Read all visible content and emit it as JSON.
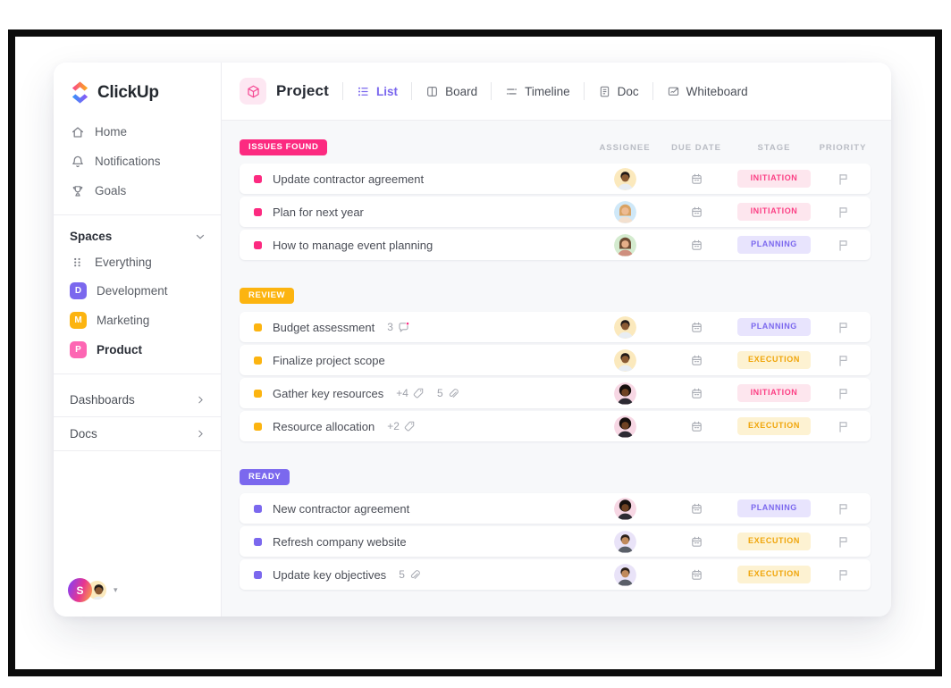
{
  "sidebar": {
    "logo_text": "ClickUp",
    "nav": [
      {
        "icon": "home-icon",
        "label": "Home"
      },
      {
        "icon": "bell-icon",
        "label": "Notifications"
      },
      {
        "icon": "trophy-icon",
        "label": "Goals"
      }
    ],
    "spaces_header": {
      "label": "Spaces"
    },
    "spaces": [
      {
        "icon": "grid-dots-icon",
        "label": "Everything"
      },
      {
        "initial": "D",
        "color": "#7b68ee",
        "label": "Development"
      },
      {
        "initial": "M",
        "color": "#fcb410",
        "label": "Marketing"
      },
      {
        "initial": "P",
        "color": "#fd66b3",
        "label": "Product",
        "bold": true
      }
    ],
    "links": [
      {
        "label": "Dashboards"
      },
      {
        "label": "Docs"
      }
    ],
    "user": {
      "initial": "S"
    }
  },
  "header": {
    "title": "Project",
    "tabs": [
      {
        "label": "List",
        "active": true
      },
      {
        "label": "Board"
      },
      {
        "label": "Timeline"
      },
      {
        "label": "Doc"
      },
      {
        "label": "Whiteboard"
      }
    ]
  },
  "table": {
    "columns": [
      "ASSIGNEE",
      "DUE DATE",
      "STAGE",
      "PRIORITY"
    ],
    "stage_styles": {
      "INITIATION": {
        "bg": "#fde6ee",
        "fg": "#fc3f84"
      },
      "PLANNING": {
        "bg": "#e8e4fd",
        "fg": "#7b68ee"
      },
      "EXECUTION": {
        "bg": "#fdf2d2",
        "fg": "#f0a50a"
      }
    },
    "avatars": {
      "man-yellow": {
        "bg": "#fbe9bd",
        "skin": "#8a5a33",
        "hair": "#221a18",
        "shirt": "#e8edf2"
      },
      "woman-blue": {
        "bg": "#cfe8f8",
        "skin": "#edbb93",
        "hair": "#d9a263",
        "shirt": "#f3e0cf",
        "long": true
      },
      "woman-green": {
        "bg": "#d4ebcf",
        "skin": "#e5af89",
        "hair": "#6e4b33",
        "shirt": "#cf8f7e",
        "long": true
      },
      "man-afro": {
        "bg": "#f7d7e4",
        "skin": "#6f4223",
        "hair": "#17100e",
        "shirt": "#2d2a33",
        "afro": true
      },
      "man-purple": {
        "bg": "#e9e3f8",
        "skin": "#c08a5c",
        "hair": "#2b2018",
        "shirt": "#5a5f68"
      }
    },
    "groups": [
      {
        "label": "ISSUES FOUND",
        "color": "#fc2a80",
        "rows": [
          {
            "title": "Update contractor agreement",
            "stage": "INITIATION",
            "avatar": "man-yellow"
          },
          {
            "title": "Plan for next year",
            "stage": "INITIATION",
            "avatar": "woman-blue"
          },
          {
            "title": "How to manage event planning",
            "stage": "PLANNING",
            "avatar": "woman-green"
          }
        ]
      },
      {
        "label": "REVIEW",
        "color": "#fcb410",
        "rows": [
          {
            "title": "Budget assessment",
            "comments": "3",
            "stage": "PLANNING",
            "avatar": "man-yellow"
          },
          {
            "title": "Finalize project scope",
            "stage": "EXECUTION",
            "avatar": "man-yellow"
          },
          {
            "title": "Gather key resources",
            "tags": "+4",
            "attachments": "5",
            "stage": "INITIATION",
            "avatar": "man-afro"
          },
          {
            "title": "Resource allocation",
            "tags": "+2",
            "stage": "EXECUTION",
            "avatar": "man-afro"
          }
        ]
      },
      {
        "label": "READY",
        "color": "#7b68ee",
        "rows": [
          {
            "title": "New contractor agreement",
            "stage": "PLANNING",
            "avatar": "man-afro"
          },
          {
            "title": "Refresh company website",
            "stage": "EXECUTION",
            "avatar": "man-purple"
          },
          {
            "title": "Update key objectives",
            "attachments": "5",
            "stage": "EXECUTION",
            "avatar": "man-purple"
          }
        ]
      }
    ]
  },
  "colors": {
    "accent": "#7b68ee",
    "pink": "#fc2a80",
    "yellow": "#fcb410"
  }
}
